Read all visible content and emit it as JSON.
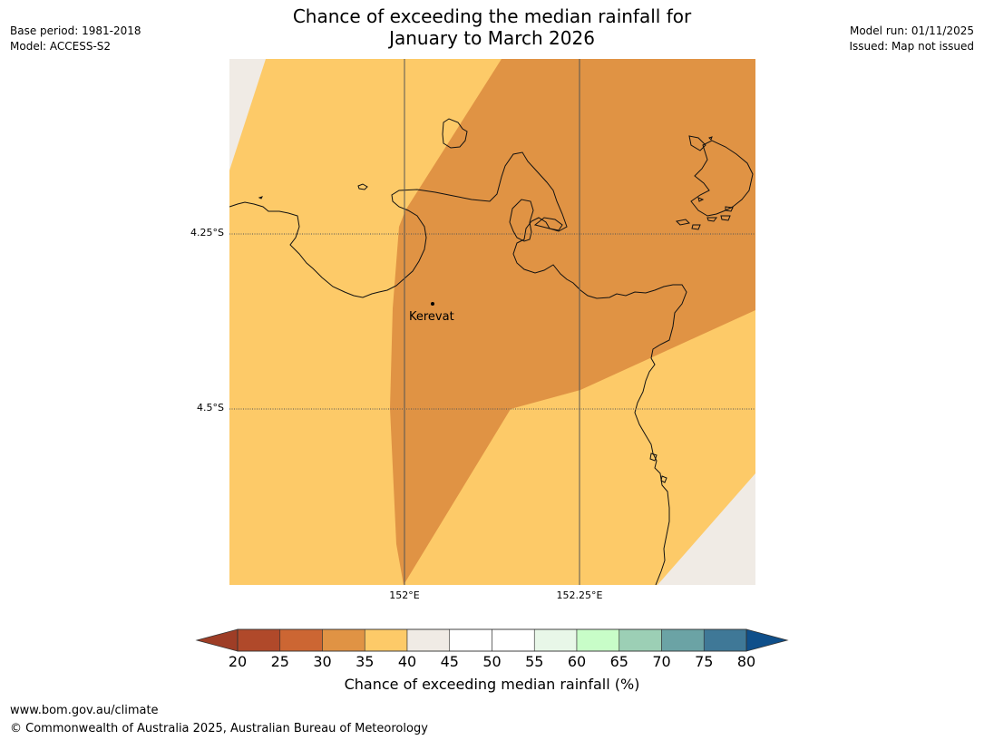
{
  "title": {
    "line1": "Chance of exceeding the median rainfall for",
    "line2": "January to March 2026"
  },
  "meta": {
    "base_period": "Base period: 1981-2018",
    "model": "Model: ACCESS-S2",
    "model_run": "Model run: 01/11/2025",
    "issued": "Issued: Map not issued"
  },
  "map": {
    "place": "Kerevat",
    "lat_labels": [
      "4.25°S",
      "4.5°S"
    ],
    "lon_labels": [
      "152°E",
      "152.25°E"
    ],
    "colors": {
      "class_30_35": "#e09344",
      "class_35_40": "#fdca68",
      "class_40_45": "#f0ebe5",
      "coastline": "#111111",
      "graticule": "#555555"
    }
  },
  "colorbar": {
    "ticks": [
      "20",
      "25",
      "30",
      "35",
      "40",
      "45",
      "50",
      "55",
      "60",
      "65",
      "70",
      "75",
      "80"
    ],
    "under_color": "#9e3d26",
    "over_color": "#0f4f8a",
    "colors": [
      "#b0492a",
      "#cc6633",
      "#e09344",
      "#fdca68",
      "#f0ebe5",
      "#ffffff",
      "#ffffff",
      "#e8f7e8",
      "#c8fdc8",
      "#9ccfb5",
      "#6ba3a5",
      "#3f7897"
    ],
    "label": "Chance of exceeding median rainfall (%)"
  },
  "footer": {
    "website": "www.bom.gov.au/climate",
    "copyright": "© Commonwealth of Australia 2025, Australian Bureau of Meteorology"
  }
}
